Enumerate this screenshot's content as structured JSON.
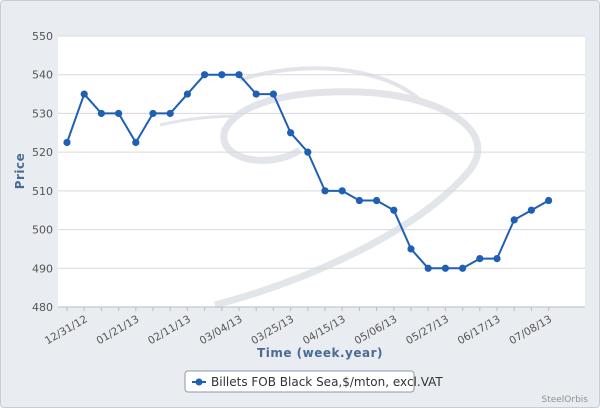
{
  "chart_data": {
    "type": "line",
    "title": "",
    "xlabel": "Time (week.year)",
    "ylabel": "Price",
    "ylim": [
      480,
      550
    ],
    "yticks": [
      480,
      490,
      500,
      510,
      520,
      530,
      540,
      550
    ],
    "x": [
      "12/24/12",
      "12/31/12",
      "01/07/13",
      "01/14/13",
      "01/21/13",
      "01/28/13",
      "02/04/13",
      "02/11/13",
      "02/18/13",
      "02/25/13",
      "03/04/13",
      "03/11/13",
      "03/18/13",
      "03/25/13",
      "04/01/13",
      "04/08/13",
      "04/15/13",
      "04/22/13",
      "04/29/13",
      "05/06/13",
      "05/13/13",
      "05/20/13",
      "05/27/13",
      "06/03/13",
      "06/10/13",
      "06/17/13",
      "06/24/13",
      "07/01/13",
      "07/08/13"
    ],
    "x_tick_labels": [
      "12/31/12",
      "01/21/13",
      "02/11/13",
      "03/04/13",
      "03/25/13",
      "04/15/13",
      "05/06/13",
      "05/27/13",
      "06/17/13",
      "07/08/13"
    ],
    "series": [
      {
        "name": "Billets FOB Black Sea,$/mton, excl.VAT",
        "color": "#1f5fb4",
        "values": [
          522.5,
          535,
          530,
          530,
          522.5,
          530,
          530,
          535,
          540,
          540,
          540,
          535,
          535,
          525,
          520,
          510,
          510,
          507.5,
          507.5,
          505,
          495,
          490,
          490,
          490,
          492.5,
          492.5,
          502.5,
          505,
          507.5
        ]
      }
    ],
    "grid": true,
    "legend_position": "bottom-center",
    "credit": "SteelOrbis"
  }
}
